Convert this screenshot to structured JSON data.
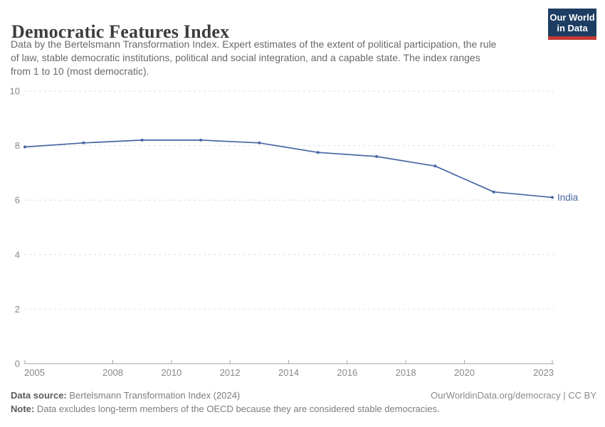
{
  "header": {
    "title": "Democratic Features Index",
    "subtitle_lines": [
      "Data by the Bertelsmann Transformation Index. Expert estimates of the extent of political participation, the rule",
      "of law, stable democratic institutions, political and social integration, and a capable state. The index ranges",
      "from 1 to 10 (most democratic)."
    ],
    "logo": {
      "line1": "Our World",
      "line2": "in Data",
      "bg_color": "#1d3d63",
      "bar_color": "#c23b34"
    }
  },
  "chart_data": {
    "type": "line",
    "title": "Democratic Features Index",
    "xlabel": "",
    "ylabel": "",
    "xlim": [
      2005,
      2023
    ],
    "ylim": [
      0,
      10
    ],
    "x_ticks": [
      2005,
      2008,
      2010,
      2012,
      2014,
      2016,
      2018,
      2020,
      2023
    ],
    "y_ticks": [
      0,
      2,
      4,
      6,
      8,
      10
    ],
    "grid": "horizontal-dashed",
    "legend_position": "line-end-label",
    "series": [
      {
        "name": "India",
        "color": "#4766a4",
        "x": [
          2005,
          2007,
          2009,
          2011,
          2013,
          2015,
          2017,
          2019,
          2021,
          2023
        ],
        "values": [
          7.95,
          8.1,
          8.2,
          8.2,
          8.1,
          7.75,
          7.6,
          7.25,
          6.3,
          6.1
        ]
      }
    ],
    "colors": {
      "grid_line": "#dedede",
      "axis_line": "#a5a5a5",
      "tick_label": "#888888"
    }
  },
  "footer": {
    "source_label": "Data source:",
    "source_value": " Bertelsmann Transformation Index (2024)",
    "link": "OurWorldinData.org/democracy | CC BY",
    "note_label": "Note:",
    "note_value": " Data excludes long-term members of the OECD because they are considered stable democracies."
  }
}
